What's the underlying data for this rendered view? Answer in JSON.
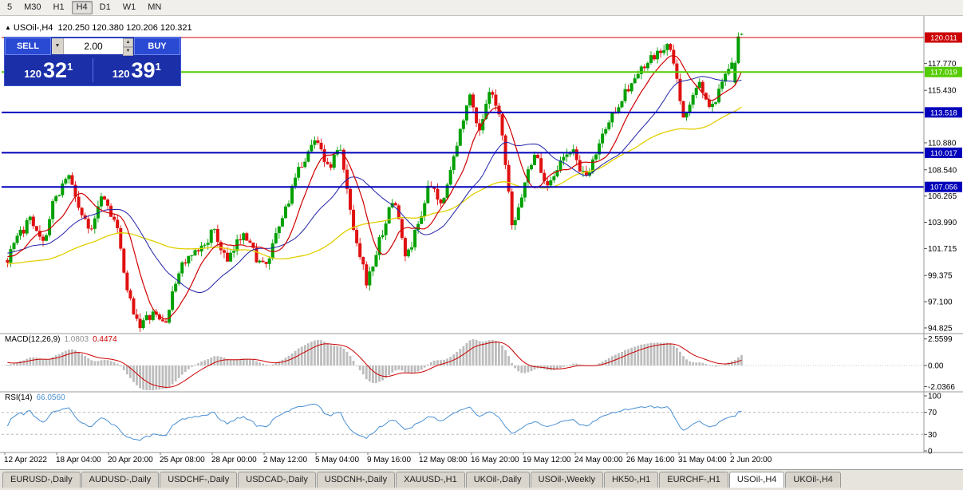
{
  "colors": {
    "up": "#00a000",
    "down": "#e01010",
    "ma_fast": "#d00000",
    "ma_mid": "#2222aa",
    "ma_slow": "#e2cf00",
    "macd_hist": "#bdbdbd",
    "macd_signal": "#cc0000",
    "rsi": "#4a90d4",
    "hline_red": "#cc0000",
    "hline_green": "#55cc00",
    "hline_blue": "#0000bb"
  },
  "icons": {
    "collapse": "▲",
    "dropdown": "▼",
    "spin_up": "▲",
    "spin_down": "▼"
  },
  "toolbar": {
    "timeframes": [
      "5",
      "M30",
      "H1",
      "H4",
      "D1",
      "W1",
      "MN"
    ],
    "selected": "H4"
  },
  "header": {
    "symbol": "USOil-,H4",
    "ohlc": "120.250 120.380 120.206 120.321"
  },
  "trade_panel": {
    "sell_label": "SELL",
    "buy_label": "BUY",
    "volume": "2.00",
    "sell_price": {
      "small": "120",
      "big": "32",
      "sup": "1"
    },
    "buy_price": {
      "small": "120",
      "big": "39",
      "sup": "1"
    }
  },
  "price_axis": {
    "ticks": [
      117.77,
      115.43,
      110.88,
      108.54,
      106.265,
      103.99,
      101.715,
      99.375,
      97.1,
      94.825
    ]
  },
  "hlines": [
    {
      "price": 120.011,
      "label": "120.011",
      "color": "#cc0000",
      "label_text_color": "#ffffff",
      "width": 1
    },
    {
      "price": 117.019,
      "label": "117.019",
      "color": "#55cc00",
      "label_text_color": "#ffffff",
      "width": 2
    },
    {
      "price": 113.518,
      "label": "113.518",
      "color": "#0000bb",
      "label_text_color": "#ffffff",
      "width": 2
    },
    {
      "price": 110.017,
      "label": "110.017",
      "color": "#0000bb",
      "label_text_color": "#ffffff",
      "width": 2
    },
    {
      "price": 107.056,
      "label": "107.056",
      "color": "#0000bb",
      "label_text_color": "#ffffff",
      "width": 2
    }
  ],
  "macd_pane": {
    "name": "MACD(12,26,9)",
    "value_main": "1.0803",
    "value_signal": "0.4474",
    "axis_ticks": [
      "2.5599",
      "0.00",
      "-2.0366"
    ]
  },
  "rsi_pane": {
    "name": "RSI(14)",
    "value": "66.0560",
    "axis_ticks": [
      "100",
      "70",
      "30",
      "0"
    ],
    "levels": [
      70,
      30
    ]
  },
  "time_axis": [
    "12 Apr 2022",
    "18 Apr 04:00",
    "20 Apr 20:00",
    "25 Apr 08:00",
    "28 Apr 00:00",
    "2 May 12:00",
    "5 May 04:00",
    "9 May 16:00",
    "12 May 08:00",
    "16 May 20:00",
    "19 May 12:00",
    "24 May 00:00",
    "26 May 16:00",
    "31 May 04:00",
    "2 Jun 20:00"
  ],
  "tabs": {
    "items": [
      "EURUSD-,Daily",
      "AUDUSD-,Daily",
      "USDCHF-,Daily",
      "USDCAD-,Daily",
      "USDCNH-,Daily",
      "XAUUSD-,H1",
      "UKOil-,Daily",
      "USOil-,Weekly",
      "HK50-,H1",
      "EURCHF-,H1",
      "USOil-,H4",
      "UKOil-,H4"
    ],
    "selected": "USOil-,H4"
  },
  "chart_data": {
    "type": "candlestick",
    "symbol": "USOil",
    "timeframe": "H4",
    "title": "USOil-,H4",
    "visible_range": {
      "start": "12 Apr 2022",
      "end": "2 Jun 2022",
      "price_min": 94.825,
      "price_max": 120.011
    },
    "last_ohlc": {
      "open": 120.25,
      "high": 120.38,
      "low": 120.206,
      "close": 120.321
    },
    "candle_count": 228,
    "indicators": {
      "macd": [
        12,
        26,
        9
      ],
      "macd_values": [
        1.0803,
        0.4474
      ],
      "rsi_period": 14,
      "rsi_value": 66.056
    },
    "swings": [
      [
        -0.31,
        98.5
      ],
      [
        -0.24,
        102.0
      ],
      [
        -0.16,
        97.6
      ],
      [
        -0.07,
        102.2
      ],
      [
        0.0,
        100.6
      ],
      [
        0.012,
        102.4
      ],
      [
        0.03,
        104.2
      ],
      [
        0.048,
        101.9
      ],
      [
        0.062,
        105.5
      ],
      [
        0.082,
        108.3
      ],
      [
        0.1,
        104.8
      ],
      [
        0.112,
        103.1
      ],
      [
        0.128,
        106.6
      ],
      [
        0.148,
        103.9
      ],
      [
        0.163,
        97.8
      ],
      [
        0.18,
        95.1
      ],
      [
        0.198,
        96.0
      ],
      [
        0.215,
        95.2
      ],
      [
        0.235,
        100.2
      ],
      [
        0.262,
        101.5
      ],
      [
        0.28,
        103.3
      ],
      [
        0.3,
        100.4
      ],
      [
        0.322,
        103.4
      ],
      [
        0.338,
        101.0
      ],
      [
        0.352,
        100.0
      ],
      [
        0.375,
        104.5
      ],
      [
        0.4,
        109.0
      ],
      [
        0.422,
        111.4
      ],
      [
        0.437,
        108.5
      ],
      [
        0.452,
        110.7
      ],
      [
        0.47,
        104.0
      ],
      [
        0.49,
        98.6
      ],
      [
        0.512,
        103.5
      ],
      [
        0.527,
        106.2
      ],
      [
        0.543,
        100.7
      ],
      [
        0.56,
        104.0
      ],
      [
        0.575,
        107.3
      ],
      [
        0.59,
        105.4
      ],
      [
        0.612,
        110.5
      ],
      [
        0.628,
        115.2
      ],
      [
        0.643,
        112.0
      ],
      [
        0.658,
        115.4
      ],
      [
        0.672,
        112.5
      ],
      [
        0.688,
        103.3
      ],
      [
        0.705,
        107.5
      ],
      [
        0.718,
        110.1
      ],
      [
        0.733,
        107.2
      ],
      [
        0.752,
        109.0
      ],
      [
        0.768,
        110.4
      ],
      [
        0.788,
        107.5
      ],
      [
        0.81,
        111.5
      ],
      [
        0.832,
        114.3
      ],
      [
        0.855,
        116.5
      ],
      [
        0.875,
        118.0
      ],
      [
        0.902,
        119.3
      ],
      [
        0.922,
        112.9
      ],
      [
        0.942,
        116.2
      ],
      [
        0.958,
        113.6
      ],
      [
        0.975,
        116.0
      ],
      [
        1.0,
        120.3
      ]
    ]
  }
}
